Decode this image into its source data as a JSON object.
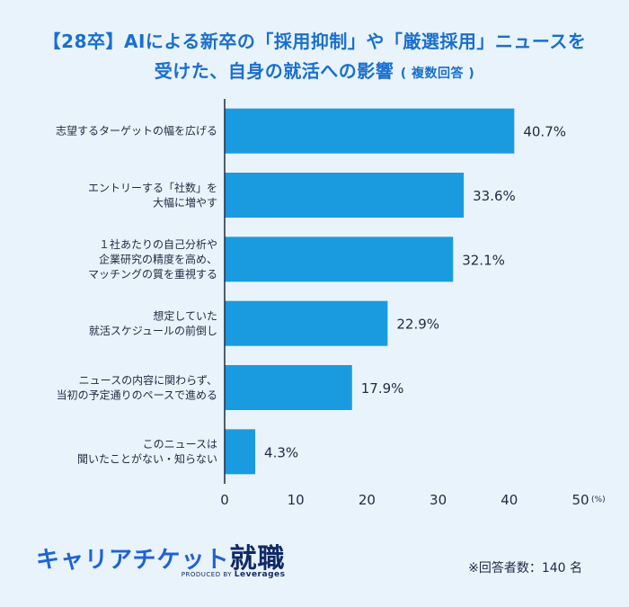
{
  "title": {
    "line1": "【28卒】AIによる新卒の「採用抑制」や「厳選採用」ニュースを",
    "line2": "受けた、自身の就活への影響",
    "line2_sub": "( 複数回答 )"
  },
  "chart_data": {
    "type": "bar",
    "orientation": "horizontal",
    "categories": [
      "志望するターゲットの幅を広げる",
      "エントリーする「社数」を\n大幅に増やす",
      "１社あたりの自己分析や\n企業研究の精度を高め、\nマッチングの質を重視する",
      "想定していた\n就活スケジュールの前倒し",
      "ニュースの内容に関わらず、\n当初の予定通りのペースで進める",
      "このニュースは\n聞いたことがない・知らない"
    ],
    "values": [
      40.7,
      33.6,
      32.1,
      22.9,
      17.9,
      4.3
    ],
    "value_labels": [
      "40.7%",
      "33.6%",
      "32.1%",
      "22.9%",
      "17.9%",
      "4.3%"
    ],
    "xlim": [
      0,
      50
    ],
    "xticks": [
      0,
      10,
      20,
      30,
      40,
      50
    ],
    "xunit": "(%)",
    "bar_color": "#1a9be0",
    "grid": false
  },
  "footer": {
    "note": "※回答者数：140 名"
  },
  "logo": {
    "brand_main": "キャリアチケット",
    "brand_kanji": "就職",
    "produced_by": "PRODUCED BY",
    "company": "Leverages"
  },
  "colors": {
    "background": "#e9f3fc",
    "title": "#1a6fcf",
    "bar": "#1a9be0"
  }
}
